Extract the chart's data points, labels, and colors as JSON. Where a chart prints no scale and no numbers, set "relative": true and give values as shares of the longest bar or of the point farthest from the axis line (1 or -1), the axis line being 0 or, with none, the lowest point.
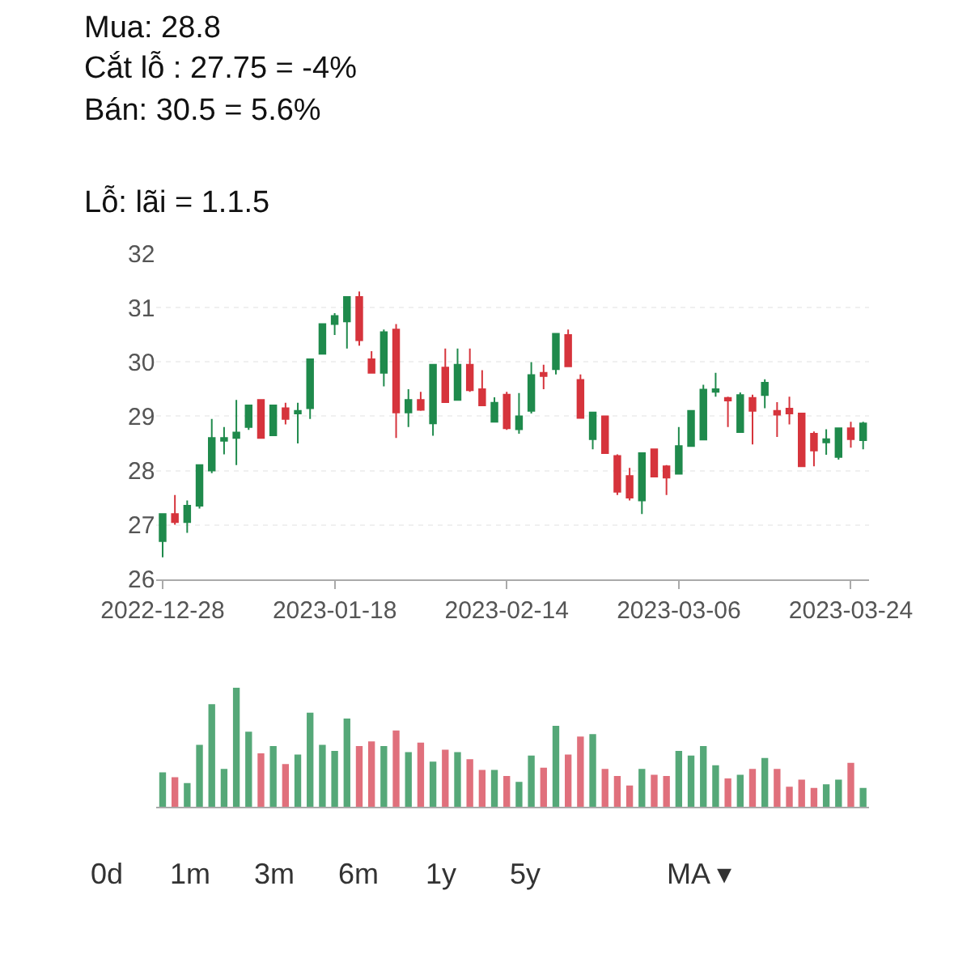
{
  "chart_data": [
    {
      "type": "candlestick",
      "annotations": [
        "Mua: 28.8",
        "Cắt lỗ : 27.75 = -4%",
        "Bán: 30.5 = 5.6%",
        "Lỗ: lãi = 1.1.5"
      ],
      "categories": [
        "2022-12-28",
        null,
        null,
        null,
        null,
        null,
        null,
        null,
        null,
        null,
        null,
        null,
        null,
        null,
        "2023-01-18",
        null,
        null,
        null,
        null,
        null,
        null,
        null,
        null,
        null,
        null,
        null,
        null,
        null,
        "2023-02-14",
        null,
        null,
        null,
        null,
        null,
        null,
        null,
        null,
        null,
        null,
        null,
        null,
        null,
        "2023-03-06",
        null,
        null,
        null,
        null,
        null,
        null,
        null,
        null,
        null,
        null,
        null,
        null,
        null,
        "2023-03-24",
        null
      ],
      "ohlc": [
        [
          26.7,
          27.2,
          26.4,
          27.2
        ],
        [
          27.2,
          27.55,
          27.0,
          27.05
        ],
        [
          27.05,
          27.45,
          26.85,
          27.35
        ],
        [
          27.35,
          28.1,
          27.3,
          28.1
        ],
        [
          28.0,
          28.95,
          27.95,
          28.6
        ],
        [
          28.55,
          28.8,
          28.3,
          28.6
        ],
        [
          28.6,
          29.3,
          28.1,
          28.7
        ],
        [
          28.8,
          29.2,
          28.75,
          29.2
        ],
        [
          29.3,
          29.3,
          28.6,
          28.6
        ],
        [
          28.65,
          29.2,
          28.65,
          29.2
        ],
        [
          29.15,
          29.25,
          28.85,
          28.95
        ],
        [
          29.05,
          29.25,
          28.5,
          29.1
        ],
        [
          29.15,
          30.05,
          28.95,
          30.05
        ],
        [
          30.15,
          30.7,
          30.15,
          30.7
        ],
        [
          30.7,
          30.9,
          30.5,
          30.85
        ],
        [
          30.75,
          31.2,
          30.25,
          31.2
        ],
        [
          31.2,
          31.3,
          30.3,
          30.4
        ],
        [
          30.05,
          30.2,
          29.8,
          29.8
        ],
        [
          29.8,
          30.6,
          29.55,
          30.55
        ],
        [
          30.6,
          30.7,
          28.6,
          29.07
        ],
        [
          29.07,
          29.5,
          28.8,
          29.3
        ],
        [
          29.3,
          29.45,
          29.1,
          29.12
        ],
        [
          28.87,
          29.95,
          28.64,
          29.95
        ],
        [
          29.9,
          30.25,
          29.25,
          29.26
        ],
        [
          29.3,
          30.25,
          29.3,
          29.95
        ],
        [
          29.95,
          30.25,
          29.45,
          29.48
        ],
        [
          29.5,
          29.85,
          29.2,
          29.2
        ],
        [
          28.9,
          29.35,
          28.9,
          29.25
        ],
        [
          29.4,
          29.45,
          28.75,
          28.78
        ],
        [
          28.76,
          29.43,
          28.68,
          29.0
        ],
        [
          29.1,
          30.0,
          29.05,
          29.76
        ],
        [
          29.8,
          29.95,
          29.5,
          29.74
        ],
        [
          29.87,
          30.52,
          29.77,
          30.52
        ],
        [
          30.5,
          30.6,
          29.92,
          29.92
        ],
        [
          29.67,
          29.77,
          28.97,
          28.97
        ],
        [
          28.58,
          29.07,
          28.39,
          29.07
        ],
        [
          29.0,
          29.0,
          28.32,
          28.32
        ],
        [
          28.27,
          28.3,
          27.55,
          27.61
        ],
        [
          27.9,
          28.05,
          27.45,
          27.5
        ],
        [
          27.45,
          28.32,
          27.2,
          28.32
        ],
        [
          28.39,
          28.39,
          27.89,
          27.89
        ],
        [
          28.08,
          28.1,
          27.55,
          27.87
        ],
        [
          27.94,
          28.8,
          27.94,
          28.45
        ],
        [
          28.45,
          29.1,
          28.45,
          29.1
        ],
        [
          28.57,
          29.58,
          28.57,
          29.49
        ],
        [
          29.45,
          29.8,
          29.36,
          29.5
        ],
        [
          29.34,
          29.36,
          28.8,
          29.29
        ],
        [
          28.71,
          29.44,
          28.71,
          29.39
        ],
        [
          29.34,
          29.4,
          28.48,
          29.1
        ],
        [
          29.39,
          29.68,
          29.15,
          29.62
        ],
        [
          29.1,
          29.26,
          28.62,
          29.03
        ],
        [
          29.14,
          29.36,
          28.85,
          29.05
        ],
        [
          29.05,
          29.05,
          28.08,
          28.08
        ],
        [
          28.68,
          28.72,
          28.08,
          28.37
        ],
        [
          28.52,
          28.76,
          28.29,
          28.58
        ],
        [
          28.25,
          28.78,
          28.2,
          28.78
        ],
        [
          28.78,
          28.9,
          28.42,
          28.58
        ],
        [
          28.56,
          28.9,
          28.39,
          28.87
        ]
      ],
      "colors": [
        "#1f8a4c",
        "#d6343c",
        "#1f8a4c",
        "#1f8a4c",
        "#1f8a4c",
        "#1f8a4c",
        "#1f8a4c",
        "#1f8a4c",
        "#d6343c",
        "#1f8a4c",
        "#d6343c",
        "#1f8a4c",
        "#1f8a4c",
        "#1f8a4c",
        "#1f8a4c",
        "#1f8a4c",
        "#d6343c",
        "#d6343c",
        "#1f8a4c",
        "#d6343c",
        "#1f8a4c",
        "#d6343c",
        "#1f8a4c",
        "#d6343c",
        "#1f8a4c",
        "#d6343c",
        "#d6343c",
        "#1f8a4c",
        "#d6343c",
        "#1f8a4c",
        "#1f8a4c",
        "#d6343c",
        "#1f8a4c",
        "#d6343c",
        "#d6343c",
        "#1f8a4c",
        "#d6343c",
        "#d6343c",
        "#d6343c",
        "#1f8a4c",
        "#d6343c",
        "#d6343c",
        "#1f8a4c",
        "#1f8a4c",
        "#1f8a4c",
        "#1f8a4c",
        "#d6343c",
        "#1f8a4c",
        "#d6343c",
        "#1f8a4c",
        "#d6343c",
        "#d6343c",
        "#d6343c",
        "#d6343c",
        "#1f8a4c",
        "#1f8a4c",
        "#d6343c",
        "#1f8a4c"
      ],
      "ylim": [
        26,
        32
      ],
      "yticks": [
        26,
        27,
        28,
        29,
        30,
        31,
        32
      ],
      "grid": "y"
    },
    {
      "type": "bar",
      "relative": true,
      "categories": [
        null,
        null,
        null,
        null,
        null,
        null,
        null,
        null,
        null,
        null,
        null,
        null,
        null,
        null,
        null,
        null,
        null,
        null,
        null,
        null,
        null,
        null,
        null,
        null,
        null,
        null,
        null,
        null,
        null,
        null,
        null,
        null,
        null,
        null,
        null,
        null,
        null,
        null,
        null,
        null,
        null,
        null,
        null,
        null,
        null,
        null,
        null,
        null,
        null,
        null,
        null,
        null,
        null,
        null,
        null,
        null,
        null,
        null
      ],
      "values": [
        0.29,
        0.25,
        0.2,
        0.52,
        0.86,
        0.32,
        1,
        0.63,
        0.45,
        0.51,
        0.36,
        0.44,
        0.79,
        0.52,
        0.47,
        0.74,
        0.51,
        0.55,
        0.51,
        0.64,
        0.46,
        0.54,
        0.38,
        0.48,
        0.46,
        0.4,
        0.31,
        0.31,
        0.26,
        0.21,
        0.43,
        0.33,
        0.68,
        0.44,
        0.59,
        0.61,
        0.32,
        0.26,
        0.18,
        0.32,
        0.27,
        0.26,
        0.47,
        0.43,
        0.51,
        0.35,
        0.24,
        0.27,
        0.32,
        0.41,
        0.32,
        0.17,
        0.23,
        0.16,
        0.19,
        0.23,
        0.37,
        0.16
      ],
      "colors": [
        "#55a878",
        "#e0707c",
        "#55a878",
        "#55a878",
        "#55a878",
        "#55a878",
        "#55a878",
        "#55a878",
        "#e0707c",
        "#55a878",
        "#e0707c",
        "#55a878",
        "#55a878",
        "#55a878",
        "#55a878",
        "#55a878",
        "#e0707c",
        "#e0707c",
        "#55a878",
        "#e0707c",
        "#55a878",
        "#e0707c",
        "#55a878",
        "#e0707c",
        "#55a878",
        "#e0707c",
        "#e0707c",
        "#55a878",
        "#e0707c",
        "#55a878",
        "#55a878",
        "#e0707c",
        "#55a878",
        "#e0707c",
        "#e0707c",
        "#55a878",
        "#e0707c",
        "#e0707c",
        "#e0707c",
        "#55a878",
        "#e0707c",
        "#e0707c",
        "#55a878",
        "#55a878",
        "#55a878",
        "#55a878",
        "#e0707c",
        "#55a878",
        "#e0707c",
        "#55a878",
        "#e0707c",
        "#e0707c",
        "#e0707c",
        "#e0707c",
        "#55a878",
        "#55a878",
        "#e0707c",
        "#55a878"
      ]
    },
    {
      "type": "other",
      "annotations": [
        "0d",
        "1m",
        "3m",
        "6m",
        "1y",
        "5y",
        "MA ▾"
      ]
    }
  ]
}
